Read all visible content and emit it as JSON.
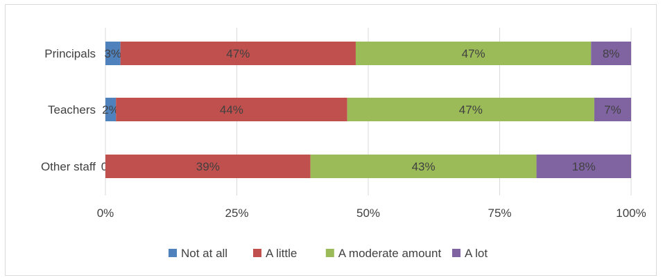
{
  "chart_data": {
    "type": "bar",
    "orientation": "horizontal",
    "stacked": true,
    "percent_stacked": true,
    "categories": [
      "Principals",
      "Teachers",
      "Other staff"
    ],
    "series": [
      {
        "name": "Not at all",
        "color": "#4f81bd",
        "values": [
          3,
          2,
          0
        ],
        "labels": [
          "3%",
          "2%",
          "0%"
        ]
      },
      {
        "name": "A little",
        "color": "#c0504d",
        "values": [
          47,
          44,
          39
        ],
        "labels": [
          "47%",
          "44%",
          "39%"
        ]
      },
      {
        "name": "A moderate amount",
        "color": "#9bbb59",
        "values": [
          47,
          47,
          43
        ],
        "labels": [
          "47%",
          "47%",
          "43%"
        ]
      },
      {
        "name": "A lot",
        "color": "#8064a2",
        "values": [
          8,
          7,
          18
        ],
        "labels": [
          "8%",
          "7%",
          "18%"
        ]
      }
    ],
    "xlim": [
      0,
      100
    ],
    "x_ticks": [
      "0%",
      "25%",
      "50%",
      "75%",
      "100%"
    ],
    "grid": true,
    "legend_position": "bottom"
  }
}
